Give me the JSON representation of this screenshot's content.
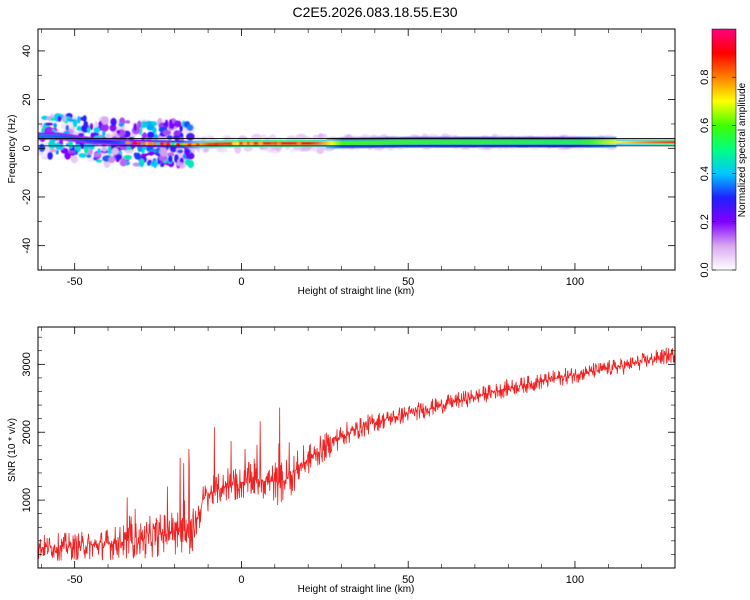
{
  "figure_title": "C2E5.2026.083.18.55.E30",
  "chart_data": [
    {
      "type": "heatmap",
      "title": "",
      "xlabel": "Height of straight line (km)",
      "ylabel": "Frequency (Hz)",
      "xlim": [
        -61,
        130
      ],
      "ylim": [
        -50,
        49
      ],
      "xticks": [
        -50,
        0,
        50,
        100
      ],
      "xtick_labels": [
        "-50",
        "0",
        "50",
        "100"
      ],
      "yticks": [
        -40,
        -20,
        0,
        20,
        40
      ],
      "ytick_labels": [
        "-40",
        "-20",
        "0",
        "20",
        "40"
      ],
      "horizontal_lines": [
        4,
        1
      ],
      "colorbar": {
        "label": "Normalized spectral amplitude",
        "range": [
          0,
          1
        ],
        "ticks": [
          0.0,
          0.2,
          0.4,
          0.6,
          0.8
        ],
        "tick_labels": [
          "0.0",
          "0.2",
          "0.4",
          "0.6",
          "0.8"
        ],
        "colors": [
          "#ffffff",
          "#d9a8f0",
          "#8000ff",
          "#2020ff",
          "#00c8ff",
          "#00ff80",
          "#40ff00",
          "#ffff00",
          "#ff8000",
          "#ff0000",
          "#ff0080"
        ]
      },
      "ridge": {
        "description_points": [
          [
            -55,
            5
          ],
          [
            -45,
            3
          ],
          [
            -30,
            2
          ],
          [
            -15,
            1.5
          ],
          [
            0,
            2
          ],
          [
            20,
            2
          ],
          [
            50,
            2.5
          ],
          [
            100,
            2.5
          ],
          [
            130,
            2.5
          ]
        ],
        "amplitude_points": [
          [
            -60,
            0.35
          ],
          [
            -40,
            0.3
          ],
          [
            -20,
            0.5
          ],
          [
            -10,
            0.85
          ],
          [
            20,
            0.9
          ],
          [
            30,
            0.6
          ],
          [
            100,
            0.55
          ],
          [
            130,
            0.9
          ]
        ]
      }
    },
    {
      "type": "line",
      "title": "",
      "xlabel": "Height of straight line (km)",
      "ylabel": "SNR (10 * v/v)",
      "xlim": [
        -61,
        130
      ],
      "ylim": [
        0,
        3550
      ],
      "xticks": [
        -50,
        0,
        50,
        100
      ],
      "xtick_labels": [
        "-50",
        "0",
        "50",
        "100"
      ],
      "yticks": [
        1000,
        2000,
        3000
      ],
      "ytick_labels": [
        "1000",
        "2000",
        "3000"
      ],
      "series": [
        {
          "name": "SNR",
          "color": "#ee2222",
          "trend_x": [
            -61,
            -45,
            -30,
            -20,
            -15,
            -11,
            -5,
            5,
            12,
            20,
            30,
            40,
            60,
            80,
            100,
            115,
            130
          ],
          "trend_y": [
            300,
            330,
            420,
            550,
            500,
            1050,
            1200,
            1300,
            1250,
            1600,
            1950,
            2150,
            2400,
            2650,
            2850,
            2980,
            3150
          ],
          "noise_amplitude": [
            200,
            220,
            300,
            350,
            350,
            250,
            250,
            300,
            350,
            250,
            180,
            150,
            130,
            130,
            130,
            130,
            130
          ]
        }
      ]
    }
  ]
}
